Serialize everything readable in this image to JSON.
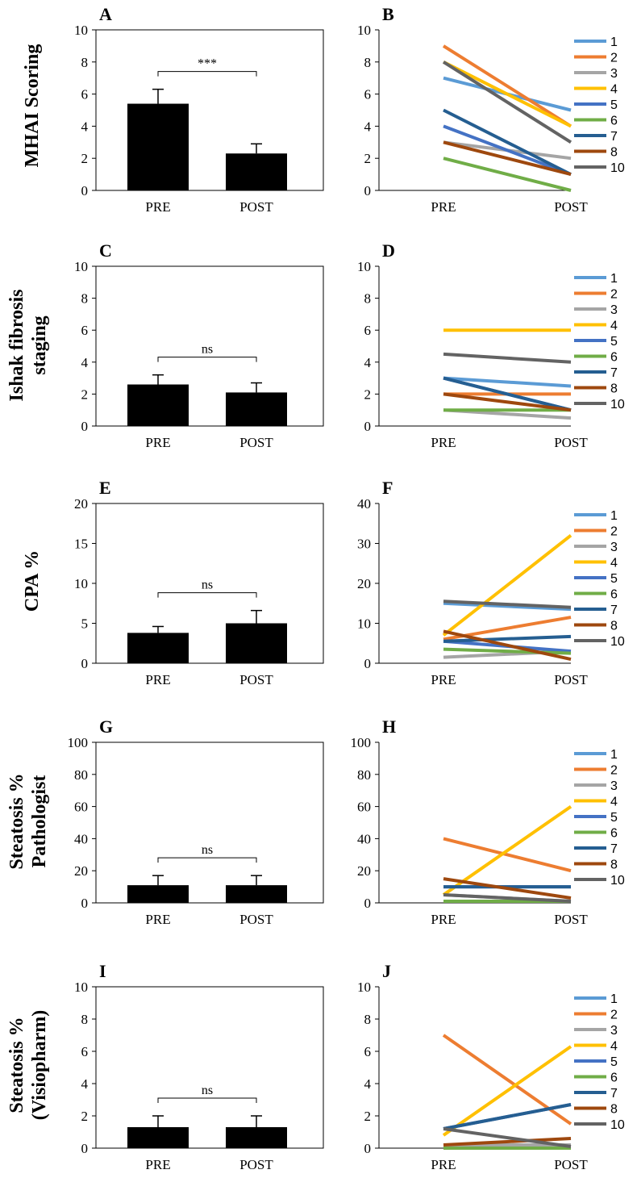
{
  "chart_data": [
    {
      "panel": "A",
      "type": "bar",
      "ylabel": "MHAI Scoring",
      "categories": [
        "PRE",
        "POST"
      ],
      "values": [
        5.4,
        2.3
      ],
      "errors": [
        0.9,
        0.6
      ],
      "ylim": [
        0,
        10
      ],
      "yticks": [
        0,
        2,
        4,
        6,
        8,
        10
      ],
      "sig": "***"
    },
    {
      "panel": "B",
      "type": "line",
      "categories": [
        "PRE",
        "POST"
      ],
      "ylim": [
        0,
        10
      ],
      "yticks": [
        0,
        2,
        4,
        6,
        8,
        10
      ],
      "series": [
        {
          "name": "1",
          "values": [
            7,
            5
          ]
        },
        {
          "name": "2",
          "values": [
            9,
            4
          ]
        },
        {
          "name": "3",
          "values": [
            3,
            2
          ]
        },
        {
          "name": "4",
          "values": [
            8,
            4
          ]
        },
        {
          "name": "5",
          "values": [
            4,
            1
          ]
        },
        {
          "name": "6",
          "values": [
            2,
            0
          ]
        },
        {
          "name": "7",
          "values": [
            5,
            1
          ]
        },
        {
          "name": "8",
          "values": [
            3,
            1
          ]
        },
        {
          "name": "10",
          "values": [
            8,
            3
          ]
        }
      ]
    },
    {
      "panel": "C",
      "type": "bar",
      "ylabel": "Ishak fibrosis staging",
      "categories": [
        "PRE",
        "POST"
      ],
      "values": [
        2.6,
        2.1
      ],
      "errors": [
        0.6,
        0.6
      ],
      "ylim": [
        0,
        10
      ],
      "yticks": [
        0,
        2,
        4,
        6,
        8,
        10
      ],
      "sig": "ns"
    },
    {
      "panel": "D",
      "type": "line",
      "categories": [
        "PRE",
        "POST"
      ],
      "ylim": [
        0,
        10
      ],
      "yticks": [
        0,
        2,
        4,
        6,
        8,
        10
      ],
      "series": [
        {
          "name": "1",
          "values": [
            3,
            2.5
          ]
        },
        {
          "name": "2",
          "values": [
            2,
            2
          ]
        },
        {
          "name": "3",
          "values": [
            1,
            0.5
          ]
        },
        {
          "name": "4",
          "values": [
            6,
            6
          ]
        },
        {
          "name": "5",
          "values": [
            3,
            1
          ]
        },
        {
          "name": "6",
          "values": [
            1,
            1
          ]
        },
        {
          "name": "7",
          "values": [
            3,
            1
          ]
        },
        {
          "name": "8",
          "values": [
            2,
            1
          ]
        },
        {
          "name": "10",
          "values": [
            4.5,
            4
          ]
        }
      ]
    },
    {
      "panel": "E",
      "type": "bar",
      "ylabel": "CPA %",
      "categories": [
        "PRE",
        "POST"
      ],
      "values": [
        3.8,
        5
      ],
      "errors": [
        0.8,
        1.6
      ],
      "ylim": [
        0,
        20
      ],
      "yticks": [
        0,
        5,
        10,
        15,
        20
      ],
      "sig": "ns"
    },
    {
      "panel": "F",
      "type": "line",
      "categories": [
        "PRE",
        "POST"
      ],
      "ylim": [
        0,
        40
      ],
      "yticks": [
        0,
        10,
        20,
        30,
        40
      ],
      "series": [
        {
          "name": "1",
          "values": [
            15,
            13.5
          ]
        },
        {
          "name": "2",
          "values": [
            6,
            11.5
          ]
        },
        {
          "name": "3",
          "values": [
            1.5,
            3
          ]
        },
        {
          "name": "4",
          "values": [
            7,
            32
          ]
        },
        {
          "name": "5",
          "values": [
            5.5,
            3
          ]
        },
        {
          "name": "6",
          "values": [
            3.5,
            2.5
          ]
        },
        {
          "name": "7",
          "values": [
            5.5,
            6.7
          ]
        },
        {
          "name": "8",
          "values": [
            8,
            1
          ]
        },
        {
          "name": "10",
          "values": [
            15.5,
            14
          ]
        }
      ]
    },
    {
      "panel": "G",
      "type": "bar",
      "ylabel": "Steatosis % Pathologist",
      "categories": [
        "PRE",
        "POST"
      ],
      "values": [
        11,
        11
      ],
      "errors": [
        6,
        6
      ],
      "ylim": [
        0,
        100
      ],
      "yticks": [
        0,
        20,
        40,
        60,
        80,
        100
      ],
      "sig": "ns"
    },
    {
      "panel": "H",
      "type": "line",
      "categories": [
        "PRE",
        "POST"
      ],
      "ylim": [
        0,
        100
      ],
      "yticks": [
        0,
        20,
        40,
        60,
        80,
        100
      ],
      "series": [
        {
          "name": "1",
          "values": [
            1,
            1
          ]
        },
        {
          "name": "2",
          "values": [
            40,
            20
          ]
        },
        {
          "name": "3",
          "values": [
            5,
            1
          ]
        },
        {
          "name": "4",
          "values": [
            5,
            60
          ]
        },
        {
          "name": "5",
          "values": [
            10,
            10
          ]
        },
        {
          "name": "6",
          "values": [
            1,
            1
          ]
        },
        {
          "name": "7",
          "values": [
            10,
            10
          ]
        },
        {
          "name": "8",
          "values": [
            15,
            3
          ]
        },
        {
          "name": "10",
          "values": [
            5,
            1
          ]
        }
      ]
    },
    {
      "panel": "I",
      "type": "bar",
      "ylabel": "Steatosis % (Visiopharm)",
      "categories": [
        "PRE",
        "POST"
      ],
      "values": [
        1.3,
        1.3
      ],
      "errors": [
        0.7,
        0.7
      ],
      "ylim": [
        0,
        10
      ],
      "yticks": [
        0,
        2,
        4,
        6,
        8,
        10
      ],
      "sig": "ns"
    },
    {
      "panel": "J",
      "type": "line",
      "categories": [
        "PRE",
        "POST"
      ],
      "ylim": [
        0,
        10
      ],
      "yticks": [
        0,
        2,
        4,
        6,
        8,
        10
      ],
      "series": [
        {
          "name": "1",
          "values": [
            0.2,
            0.2
          ]
        },
        {
          "name": "2",
          "values": [
            7,
            1.5
          ]
        },
        {
          "name": "3",
          "values": [
            0.2,
            0.2
          ]
        },
        {
          "name": "4",
          "values": [
            0.8,
            6.3
          ]
        },
        {
          "name": "5",
          "values": [
            1.2,
            2.7
          ]
        },
        {
          "name": "6",
          "values": [
            0,
            0
          ]
        },
        {
          "name": "7",
          "values": [
            1.2,
            2.7
          ]
        },
        {
          "name": "8",
          "values": [
            0.2,
            0.6
          ]
        },
        {
          "name": "10",
          "values": [
            1.2,
            0.1
          ]
        }
      ]
    }
  ],
  "legend_colors": {
    "1": "#5b9bd5",
    "2": "#ed7d31",
    "3": "#a5a5a5",
    "4": "#ffc000",
    "5": "#4472c4",
    "6": "#70ad47",
    "7": "#255e91",
    "8": "#9e480e",
    "10": "#636363"
  },
  "bar_color": "#000000",
  "row_labels": [
    {
      "lines": [
        "MHAI Scoring"
      ]
    },
    {
      "lines": [
        "Ishak fibrosis",
        "staging"
      ]
    },
    {
      "lines": [
        "CPA %"
      ]
    },
    {
      "lines": [
        "Steatosis %",
        "Pathologist"
      ]
    },
    {
      "lines": [
        "Steatosis %",
        "(Visiopharm)"
      ]
    }
  ]
}
